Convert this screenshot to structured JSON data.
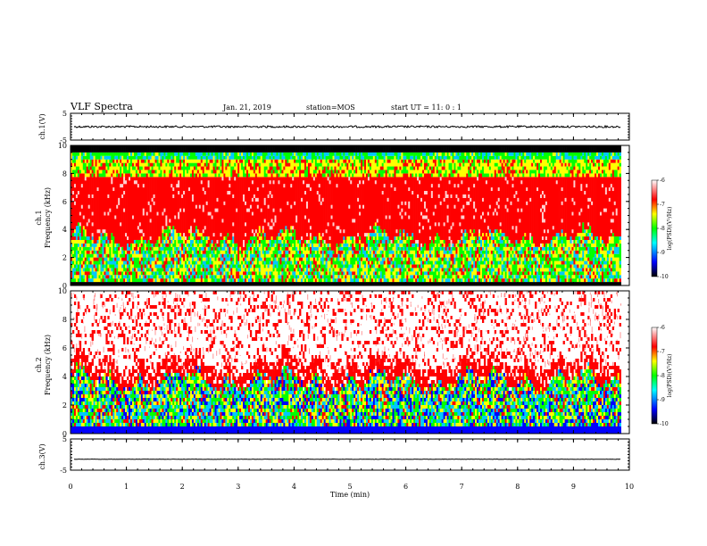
{
  "header": {
    "title": "VLF Spectra",
    "date": "Jan. 21, 2019",
    "station": "station=MOS",
    "start": "start UT =  11: 0  : 1"
  },
  "chart_data": {
    "type": "heatmap",
    "x": {
      "label": "Time (min)",
      "range": [
        0,
        10
      ],
      "ticks": [
        "0",
        "1",
        "2",
        "3",
        "4",
        "5",
        "6",
        "7",
        "8",
        "9",
        "10"
      ]
    },
    "panels": [
      {
        "id": "ch1-waveform",
        "ylabel": "ch.1(V)",
        "yticks": [
          "5",
          "-5"
        ],
        "ylim": [
          -5,
          5
        ],
        "level": 0.0
      },
      {
        "id": "ch1-spectrogram",
        "ylabel_top": "ch.1",
        "ylabel": "Frequency (kHz)",
        "ylim": [
          0,
          10
        ],
        "yticks": [
          "0",
          "2",
          "4",
          "6",
          "8",
          "10"
        ],
        "colorbar": {
          "label": "log(PSD)(V²/Hz)",
          "range": [
            -10,
            -6
          ],
          "ticks": [
            "-6",
            "-7",
            "-8",
            "-9",
            "-10"
          ]
        }
      },
      {
        "id": "ch2-spectrogram",
        "ylabel_top": "ch.2",
        "ylabel": "Frequency (kHz)",
        "ylim": [
          0,
          10
        ],
        "yticks": [
          "0",
          "2",
          "4",
          "6",
          "8",
          "10"
        ],
        "colorbar": {
          "label": "log(PSD)(V²/Hz)",
          "range": [
            -10,
            -6
          ],
          "ticks": [
            "-6",
            "-7",
            "-8",
            "-9",
            "-10"
          ]
        }
      },
      {
        "id": "ch3-waveform",
        "ylabel": "ch.3(V)",
        "yticks": [
          "5",
          "-5"
        ],
        "ylim": [
          -5,
          5
        ],
        "level": -1.5
      }
    ],
    "data_end_minute": 9.85,
    "colors": {
      "high": "#ff0000",
      "mid": "#00ff00",
      "low": "#0000ff",
      "floor": "#000000"
    }
  }
}
